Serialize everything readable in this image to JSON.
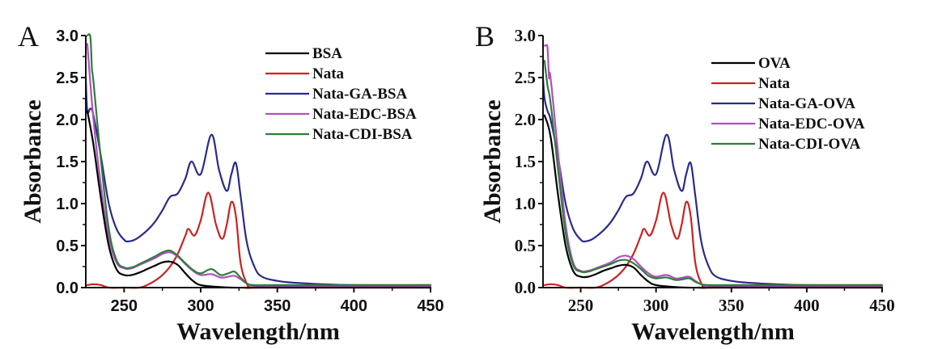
{
  "chart_data": [
    {
      "type": "line",
      "panel_label": "A",
      "xlabel": "Wavelength/nm",
      "ylabel": "Absorbance",
      "xlim": [
        225,
        450
      ],
      "ylim": [
        0,
        3.0
      ],
      "xticks": [
        250,
        300,
        350,
        400,
        450
      ],
      "xtick_labels": [
        "250",
        "300",
        "350",
        "400",
        "450"
      ],
      "yticks": [
        0.0,
        0.5,
        1.0,
        1.5,
        2.0,
        2.5,
        3.0
      ],
      "ytick_labels": [
        "0.0",
        "0.5",
        "1.0",
        "1.5",
        "2.0",
        "2.5",
        "3.0"
      ],
      "grid": false,
      "legend_position": "top-right",
      "series": [
        {
          "name": "BSA",
          "color": "#000000",
          "x": [
            226,
            230,
            235,
            240,
            245,
            250,
            255,
            260,
            265,
            270,
            275,
            280,
            285,
            290,
            295,
            300,
            310,
            320,
            330,
            350,
            400,
            450
          ],
          "y": [
            2.1,
            1.7,
            1.05,
            0.5,
            0.22,
            0.15,
            0.15,
            0.18,
            0.22,
            0.26,
            0.3,
            0.31,
            0.27,
            0.17,
            0.08,
            0.03,
            0.01,
            0.0,
            0.0,
            0.0,
            0.0,
            0.0
          ]
        },
        {
          "name": "Nata",
          "color": "#cc2222",
          "x": [
            226,
            230,
            235,
            240,
            250,
            260,
            265,
            270,
            275,
            280,
            285,
            290,
            292,
            296,
            300,
            305,
            310,
            314,
            317,
            320,
            323,
            326,
            330,
            333,
            340,
            450
          ],
          "y": [
            0.03,
            0.04,
            0.03,
            0.0,
            0.0,
            0.0,
            0.03,
            0.08,
            0.15,
            0.25,
            0.4,
            0.62,
            0.7,
            0.62,
            0.8,
            1.13,
            0.75,
            0.58,
            0.75,
            1.02,
            0.85,
            0.3,
            0.05,
            0.0,
            0.0,
            0.0
          ]
        },
        {
          "name": "Nata-GA-BSA",
          "color": "#2a2a8c",
          "x": [
            225,
            226,
            228,
            230,
            235,
            240,
            245,
            250,
            253,
            258,
            265,
            270,
            275,
            280,
            285,
            290,
            294,
            300,
            307,
            312,
            317,
            320,
            323,
            326,
            330,
            335,
            340,
            350,
            360,
            380,
            400,
            450
          ],
          "y": [
            2.5,
            2.1,
            2.13,
            2.05,
            1.55,
            1.0,
            0.7,
            0.57,
            0.55,
            0.58,
            0.68,
            0.78,
            0.92,
            1.08,
            1.12,
            1.3,
            1.5,
            1.35,
            1.82,
            1.4,
            1.15,
            1.35,
            1.48,
            1.1,
            0.55,
            0.25,
            0.13,
            0.08,
            0.06,
            0.04,
            0.03,
            0.03
          ]
        },
        {
          "name": "Nata-EDC-BSA",
          "color": "#b050c0",
          "x": [
            226,
            230,
            235,
            240,
            245,
            250,
            255,
            260,
            270,
            275,
            280,
            285,
            290,
            295,
            300,
            307,
            313,
            318,
            322,
            326,
            330,
            335,
            350,
            400,
            450
          ],
          "y": [
            2.9,
            2.0,
            1.2,
            0.6,
            0.3,
            0.23,
            0.23,
            0.27,
            0.35,
            0.4,
            0.42,
            0.37,
            0.28,
            0.2,
            0.15,
            0.16,
            0.12,
            0.13,
            0.14,
            0.1,
            0.05,
            0.02,
            0.02,
            0.02,
            0.02
          ]
        },
        {
          "name": "Nata-CDI-BSA",
          "color": "#2e7d3a",
          "x": [
            226,
            228,
            229,
            230,
            235,
            240,
            245,
            250,
            255,
            260,
            270,
            275,
            280,
            285,
            290,
            295,
            300,
            307,
            313,
            318,
            322,
            326,
            330,
            335,
            350,
            400,
            450
          ],
          "y": [
            3.0,
            2.98,
            2.6,
            2.45,
            1.5,
            0.7,
            0.33,
            0.24,
            0.24,
            0.28,
            0.37,
            0.42,
            0.44,
            0.38,
            0.29,
            0.21,
            0.17,
            0.22,
            0.15,
            0.17,
            0.19,
            0.12,
            0.05,
            0.03,
            0.03,
            0.03,
            0.03
          ]
        }
      ]
    },
    {
      "type": "line",
      "panel_label": "B",
      "xlabel": "Wavelength/nm",
      "ylabel": "Absorbance",
      "xlim": [
        225,
        450
      ],
      "ylim": [
        0,
        3.0
      ],
      "xticks": [
        250,
        300,
        350,
        400,
        450
      ],
      "xtick_labels": [
        "250",
        "300",
        "350",
        "400",
        "450"
      ],
      "yticks": [
        0.0,
        0.5,
        1.0,
        1.5,
        2.0,
        2.5,
        3.0
      ],
      "ytick_labels": [
        "0.0",
        "0.5",
        "1.0",
        "1.5",
        "2.0",
        "2.5",
        "3.0"
      ],
      "grid": false,
      "legend_position": "top-right",
      "series": [
        {
          "name": "OVA",
          "color": "#000000",
          "x": [
            226,
            230,
            235,
            240,
            245,
            250,
            255,
            260,
            265,
            270,
            275,
            280,
            285,
            290,
            295,
            300,
            310,
            320,
            330,
            350,
            400,
            450
          ],
          "y": [
            2.05,
            1.8,
            1.1,
            0.5,
            0.2,
            0.13,
            0.13,
            0.16,
            0.2,
            0.23,
            0.26,
            0.27,
            0.24,
            0.15,
            0.07,
            0.03,
            0.01,
            0.0,
            0.0,
            0.0,
            0.0,
            0.0
          ]
        },
        {
          "name": "Nata",
          "color": "#cc2222",
          "x": [
            226,
            230,
            235,
            240,
            250,
            260,
            265,
            270,
            275,
            280,
            285,
            290,
            292,
            296,
            300,
            305,
            310,
            314,
            317,
            320,
            323,
            326,
            330,
            333,
            340,
            450
          ],
          "y": [
            0.03,
            0.04,
            0.03,
            0.0,
            0.0,
            0.0,
            0.03,
            0.08,
            0.15,
            0.25,
            0.4,
            0.62,
            0.7,
            0.62,
            0.8,
            1.13,
            0.75,
            0.58,
            0.75,
            1.02,
            0.85,
            0.3,
            0.05,
            0.0,
            0.0,
            0.0
          ]
        },
        {
          "name": "Nata-GA-OVA",
          "color": "#2a2a8c",
          "x": [
            225,
            226,
            228,
            230,
            235,
            240,
            245,
            250,
            253,
            258,
            265,
            270,
            275,
            280,
            285,
            290,
            294,
            300,
            307,
            312,
            317,
            320,
            323,
            326,
            330,
            335,
            340,
            350,
            360,
            380,
            400,
            450
          ],
          "y": [
            2.5,
            2.25,
            2.1,
            2.0,
            1.55,
            1.0,
            0.7,
            0.57,
            0.55,
            0.58,
            0.68,
            0.78,
            0.92,
            1.08,
            1.12,
            1.3,
            1.5,
            1.35,
            1.82,
            1.4,
            1.15,
            1.35,
            1.48,
            1.1,
            0.55,
            0.25,
            0.13,
            0.08,
            0.06,
            0.04,
            0.03,
            0.03
          ]
        },
        {
          "name": "Nata-EDC-OVA",
          "color": "#b050c0",
          "x": [
            226,
            227,
            228,
            229,
            230,
            235,
            240,
            245,
            250,
            255,
            260,
            270,
            275,
            280,
            285,
            290,
            295,
            300,
            307,
            313,
            318,
            322,
            326,
            330,
            335,
            350,
            400,
            450
          ],
          "y": [
            2.88,
            2.88,
            2.85,
            2.5,
            2.5,
            1.6,
            0.75,
            0.3,
            0.2,
            0.2,
            0.23,
            0.3,
            0.36,
            0.38,
            0.34,
            0.25,
            0.17,
            0.13,
            0.15,
            0.11,
            0.12,
            0.13,
            0.08,
            0.04,
            0.02,
            0.02,
            0.02,
            0.02
          ]
        },
        {
          "name": "Nata-CDI-OVA",
          "color": "#2e7d3a",
          "x": [
            226,
            228,
            230,
            235,
            240,
            245,
            250,
            255,
            260,
            270,
            275,
            280,
            285,
            290,
            295,
            300,
            307,
            313,
            318,
            322,
            326,
            330,
            335,
            350,
            400,
            450
          ],
          "y": [
            2.7,
            2.4,
            2.2,
            1.4,
            0.65,
            0.27,
            0.19,
            0.19,
            0.22,
            0.28,
            0.32,
            0.33,
            0.29,
            0.22,
            0.14,
            0.11,
            0.12,
            0.09,
            0.1,
            0.11,
            0.07,
            0.04,
            0.03,
            0.03,
            0.03,
            0.03
          ]
        }
      ]
    }
  ]
}
